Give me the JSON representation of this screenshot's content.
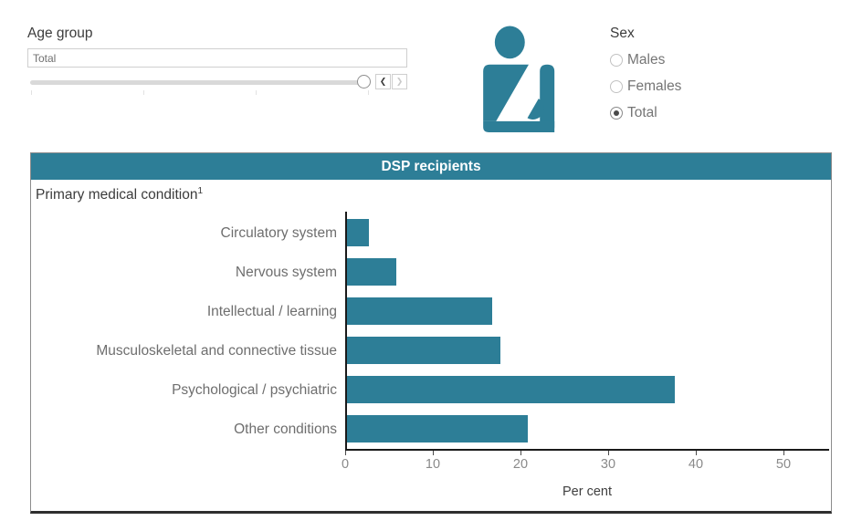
{
  "filters": {
    "age_group": {
      "label": "Age group",
      "value": "Total",
      "prev_icon": "❮",
      "next_icon": "❯"
    },
    "sex": {
      "label": "Sex",
      "options": [
        {
          "label": "Males",
          "selected": false
        },
        {
          "label": "Females",
          "selected": false
        },
        {
          "label": "Total",
          "selected": true
        }
      ]
    }
  },
  "illustration": {
    "icon": "person-arm-in-sling",
    "color": "#2d7e97"
  },
  "chart_data": {
    "type": "bar",
    "orientation": "horizontal",
    "title": "DSP recipients",
    "ylabel_note": "Primary medical condition",
    "ylabel_note_sup": "1",
    "categories": [
      "Circulatory system",
      "Nervous system",
      "Intellectual / learning",
      "Musculoskeletal and connective tissue",
      "Psychological / psychiatric",
      "Other conditions"
    ],
    "values": [
      2.5,
      5.6,
      16.6,
      17.5,
      37.4,
      20.6
    ],
    "xlabel": "Per cent",
    "xlim": [
      0,
      55
    ],
    "xticks": [
      0,
      10,
      20,
      30,
      40,
      50
    ],
    "bar_color": "#2d7e97",
    "grid": false,
    "legend": "none"
  },
  "colors": {
    "accent_teal": "#2d7e97",
    "header_text": "#ffffff",
    "text_dark": "#3c3c3c",
    "text_gray": "#757575",
    "axis": "#1a1a1a"
  }
}
